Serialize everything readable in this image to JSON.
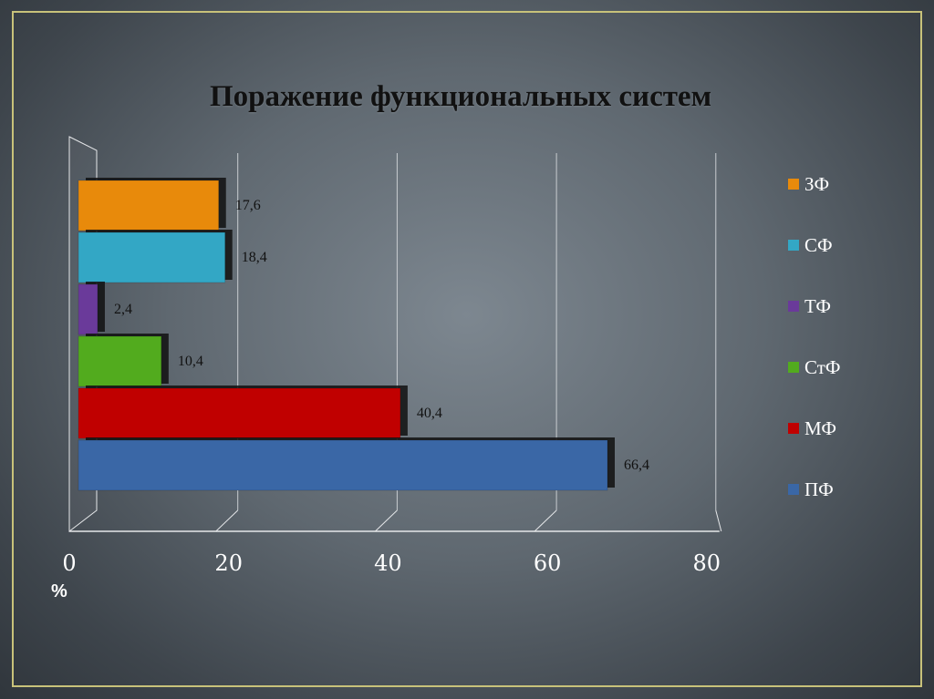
{
  "chart_data": {
    "type": "bar",
    "orientation": "horizontal",
    "title": "Поражение функциональных систем",
    "xlabel": "%",
    "xlim": [
      0,
      80
    ],
    "xticks": [
      "0",
      "20",
      "40",
      "60",
      "80"
    ],
    "grid": true,
    "legend_position": "right",
    "series": [
      {
        "name": "ЗФ",
        "value": 17.6,
        "label": "17,6",
        "color": "#e88a0b"
      },
      {
        "name": "СФ",
        "value": 18.4,
        "label": "18,4",
        "color": "#33a7c5"
      },
      {
        "name": "ТФ",
        "value": 2.4,
        "label": "2,4",
        "color": "#6a3a9a"
      },
      {
        "name": "СтФ",
        "value": 10.4,
        "label": "10,4",
        "color": "#52ab1e"
      },
      {
        "name": "МФ",
        "value": 40.4,
        "label": "40,4",
        "color": "#c00000"
      },
      {
        "name": "ПФ",
        "value": 66.4,
        "label": "66,4",
        "color": "#3a67a6"
      }
    ]
  }
}
